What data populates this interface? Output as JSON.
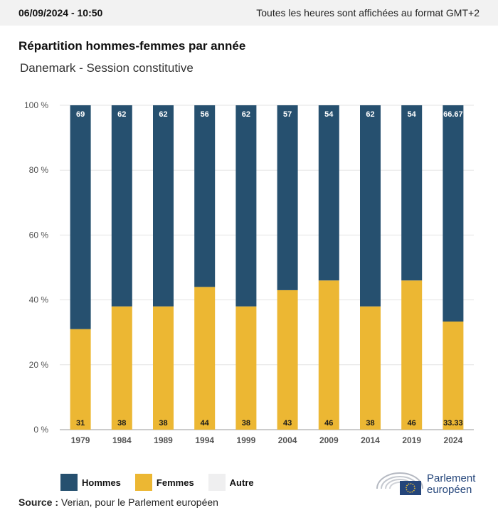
{
  "header": {
    "datetime": "06/09/2024 - 10:50",
    "timezone_note": "Toutes les heures sont affichées au format GMT+2"
  },
  "title": "Répartition hommes-femmes par année",
  "subtitle": "Danemark - Session constitutive",
  "colors": {
    "hommes": "#26506f",
    "femmes": "#ecb733",
    "autre": "#efeff0"
  },
  "chart_data": {
    "type": "bar",
    "stacked": true,
    "categories": [
      "1979",
      "1984",
      "1989",
      "1994",
      "1999",
      "2004",
      "2009",
      "2014",
      "2019",
      "2024"
    ],
    "series": [
      {
        "name": "Femmes",
        "values": [
          31,
          38,
          38,
          44,
          38,
          43,
          46,
          38,
          46,
          33.33
        ],
        "labels": [
          "31",
          "38",
          "38",
          "44",
          "38",
          "43",
          "46",
          "38",
          "46",
          "33.33"
        ]
      },
      {
        "name": "Hommes",
        "values": [
          69,
          62,
          62,
          56,
          62,
          57,
          54,
          62,
          54,
          66.67
        ],
        "labels": [
          "69",
          "62",
          "62",
          "56",
          "62",
          "57",
          "54",
          "62",
          "54",
          "66.67"
        ]
      }
    ],
    "yticks": [
      "0 %",
      "20 %",
      "40 %",
      "60 %",
      "80 %",
      "100 %"
    ],
    "ylim": [
      0,
      100
    ],
    "grid": true
  },
  "legend": {
    "items": [
      "Hommes",
      "Femmes",
      "Autre"
    ]
  },
  "source": {
    "label": "Source :",
    "text": "Verian, pour le Parlement européen"
  },
  "logo": {
    "line1": "Parlement",
    "line2": "européen"
  }
}
